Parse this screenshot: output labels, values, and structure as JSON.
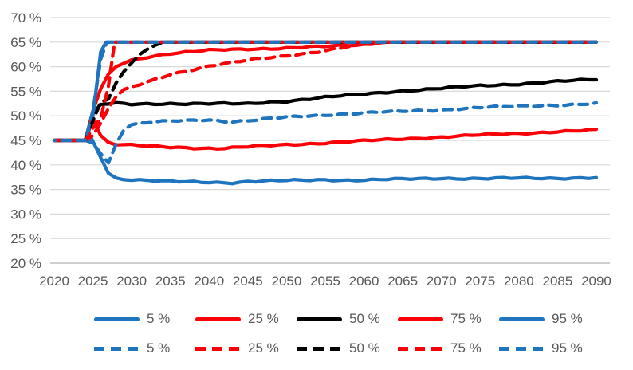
{
  "colors": {
    "blue": "#1F74BE",
    "red": "#FB0006",
    "black": "#000000",
    "grid": "#D9D9D9",
    "axis": "#BFBFBF",
    "label": "#595959",
    "background": "#FFFFFF"
  },
  "chart_data": {
    "type": "line",
    "title": "",
    "xlabel": "",
    "ylabel": "",
    "x_axis": {
      "range": [
        2020,
        2090
      ],
      "tick_labels": [
        "2020",
        "2025",
        "2030",
        "2035",
        "2040",
        "2045",
        "2050",
        "2055",
        "2060",
        "2065",
        "2070",
        "2075",
        "2080",
        "2085",
        "2090"
      ],
      "tick_values": [
        2020,
        2025,
        2030,
        2035,
        2040,
        2045,
        2050,
        2055,
        2060,
        2065,
        2070,
        2075,
        2080,
        2085,
        2090
      ]
    },
    "y_axis": {
      "range": [
        20,
        70
      ],
      "unit": "%",
      "tick_labels": [
        "70 %",
        "65 %",
        "60 %",
        "55 %",
        "50 %",
        "45 %",
        "40 %",
        "35 %",
        "30 %",
        "25 %",
        "20 %"
      ],
      "tick_values": [
        70,
        65,
        60,
        55,
        50,
        45,
        40,
        35,
        30,
        25,
        20
      ]
    },
    "grid": "horizontal-only",
    "legend": {
      "position": "bottom",
      "rows": [
        {
          "style": "solid",
          "items": [
            {
              "label": "5 %",
              "color": "blue"
            },
            {
              "label": "25 %",
              "color": "red"
            },
            {
              "label": "50 %",
              "color": "black"
            },
            {
              "label": "75 %",
              "color": "red"
            },
            {
              "label": "95 %",
              "color": "blue"
            }
          ]
        },
        {
          "style": "dashed",
          "items": [
            {
              "label": "5 %",
              "color": "blue"
            },
            {
              "label": "25 %",
              "color": "red"
            },
            {
              "label": "50 %",
              "color": "black"
            },
            {
              "label": "75 %",
              "color": "red"
            },
            {
              "label": "95 %",
              "color": "blue"
            }
          ]
        }
      ]
    },
    "series": [
      {
        "id": "p5-solid",
        "label": "5 %",
        "style": "solid",
        "color": "blue",
        "points": [
          [
            2020,
            45
          ],
          [
            2024,
            45
          ],
          [
            2024.7,
            45.8
          ],
          [
            2026,
            41.5
          ],
          [
            2027,
            38.3
          ],
          [
            2028,
            37.3
          ],
          [
            2029,
            37.1
          ],
          [
            2030,
            37
          ],
          [
            2032,
            36.8
          ],
          [
            2035,
            36.6
          ],
          [
            2040,
            36.5
          ],
          [
            2043,
            36.4
          ],
          [
            2045,
            36.6
          ],
          [
            2050,
            36.8
          ],
          [
            2055,
            37
          ],
          [
            2058,
            36.9
          ],
          [
            2060,
            36.9
          ],
          [
            2065,
            37.1
          ],
          [
            2070,
            37.3
          ],
          [
            2075,
            37.2
          ],
          [
            2080,
            37.3
          ],
          [
            2085,
            37.3
          ],
          [
            2090,
            37.4
          ]
        ]
      },
      {
        "id": "p25-solid",
        "label": "25 %",
        "style": "solid",
        "color": "red",
        "points": [
          [
            2020,
            45
          ],
          [
            2024,
            45
          ],
          [
            2025,
            49.3
          ],
          [
            2026,
            46
          ],
          [
            2027,
            44.6
          ],
          [
            2028,
            44.2
          ],
          [
            2030,
            44
          ],
          [
            2032,
            43.8
          ],
          [
            2035,
            43.6
          ],
          [
            2040,
            43.4
          ],
          [
            2042,
            43.4
          ],
          [
            2045,
            43.7
          ],
          [
            2050,
            44.1
          ],
          [
            2055,
            44.5
          ],
          [
            2060,
            44.9
          ],
          [
            2065,
            45.3
          ],
          [
            2070,
            45.7
          ],
          [
            2075,
            46.1
          ],
          [
            2080,
            46.4
          ],
          [
            2085,
            46.8
          ],
          [
            2090,
            47.1
          ]
        ]
      },
      {
        "id": "p50-solid",
        "label": "50 %",
        "style": "solid",
        "color": "black",
        "points": [
          [
            2020,
            45
          ],
          [
            2024,
            45
          ],
          [
            2025,
            50.5
          ],
          [
            2026,
            52.3
          ],
          [
            2028,
            52.5
          ],
          [
            2030,
            52.3
          ],
          [
            2035,
            52.5
          ],
          [
            2040,
            52.5
          ],
          [
            2045,
            52.4
          ],
          [
            2048,
            52.8
          ],
          [
            2050,
            53
          ],
          [
            2055,
            53.8
          ],
          [
            2060,
            54.4
          ],
          [
            2065,
            55.1
          ],
          [
            2070,
            55.6
          ],
          [
            2075,
            56.1
          ],
          [
            2080,
            56.5
          ],
          [
            2085,
            57
          ],
          [
            2090,
            57.4
          ]
        ]
      },
      {
        "id": "p75-solid",
        "label": "75 %",
        "style": "solid",
        "color": "red",
        "points": [
          [
            2020,
            45
          ],
          [
            2024,
            45
          ],
          [
            2025,
            51
          ],
          [
            2026,
            55.5
          ],
          [
            2027,
            58.5
          ],
          [
            2028,
            60
          ],
          [
            2029,
            60.8
          ],
          [
            2030,
            61.3
          ],
          [
            2032,
            62
          ],
          [
            2035,
            62.7
          ],
          [
            2040,
            63.3
          ],
          [
            2045,
            63.6
          ],
          [
            2050,
            63.8
          ],
          [
            2055,
            64.1
          ],
          [
            2060,
            64.5
          ],
          [
            2063,
            65
          ],
          [
            2090,
            65
          ]
        ]
      },
      {
        "id": "p95-solid",
        "label": "95 %",
        "style": "solid",
        "color": "blue",
        "points": [
          [
            2020,
            45
          ],
          [
            2024,
            45
          ],
          [
            2025,
            50
          ],
          [
            2026,
            63
          ],
          [
            2026.7,
            65
          ],
          [
            2090,
            65
          ]
        ]
      },
      {
        "id": "p5-dashed",
        "label": "5 %",
        "style": "dashed",
        "color": "blue",
        "points": [
          [
            2020,
            45
          ],
          [
            2024,
            45
          ],
          [
            2025,
            44.5
          ],
          [
            2026,
            42.3
          ],
          [
            2027,
            40.4
          ],
          [
            2028,
            44.3
          ],
          [
            2029,
            47.3
          ],
          [
            2030,
            48.2
          ],
          [
            2032,
            48.6
          ],
          [
            2035,
            48.9
          ],
          [
            2040,
            49.2
          ],
          [
            2043,
            48.8
          ],
          [
            2045,
            49
          ],
          [
            2050,
            49.7
          ],
          [
            2055,
            50.2
          ],
          [
            2060,
            50.6
          ],
          [
            2065,
            50.9
          ],
          [
            2070,
            51.2
          ],
          [
            2075,
            51.7
          ],
          [
            2080,
            51.9
          ],
          [
            2085,
            52.2
          ],
          [
            2090,
            52.5
          ]
        ]
      },
      {
        "id": "p25-dashed",
        "label": "25 %",
        "style": "dashed",
        "color": "red",
        "points": [
          [
            2020,
            45
          ],
          [
            2024,
            45
          ],
          [
            2025,
            46
          ],
          [
            2026,
            48.5
          ],
          [
            2027,
            51.5
          ],
          [
            2028,
            54
          ],
          [
            2029,
            55.2
          ],
          [
            2030,
            55.8
          ],
          [
            2032,
            56.8
          ],
          [
            2035,
            58.4
          ],
          [
            2040,
            60.2
          ],
          [
            2045,
            61.3
          ],
          [
            2050,
            62.2
          ],
          [
            2055,
            63.3
          ],
          [
            2058,
            64.1
          ],
          [
            2060,
            64.6
          ],
          [
            2062,
            65
          ],
          [
            2090,
            65
          ]
        ]
      },
      {
        "id": "p50-dashed",
        "label": "50 %",
        "style": "dashed",
        "color": "black",
        "points": [
          [
            2020,
            45
          ],
          [
            2024,
            45
          ],
          [
            2025,
            49
          ],
          [
            2026,
            52.8
          ],
          [
            2027,
            53.4
          ],
          [
            2028,
            56.5
          ],
          [
            2029,
            59
          ],
          [
            2030,
            60.8
          ],
          [
            2031,
            62.3
          ],
          [
            2032,
            63.5
          ],
          [
            2033,
            64.5
          ],
          [
            2034,
            65
          ],
          [
            2090,
            65
          ]
        ]
      },
      {
        "id": "p75-dashed",
        "label": "75 %",
        "style": "dashed",
        "color": "red",
        "points": [
          [
            2020,
            45
          ],
          [
            2024,
            45
          ],
          [
            2025,
            47.5
          ],
          [
            2026,
            49.5
          ],
          [
            2027,
            56
          ],
          [
            2027.8,
            65
          ],
          [
            2090,
            65
          ]
        ]
      },
      {
        "id": "p95-dashed",
        "label": "95 %",
        "style": "dashed",
        "color": "blue",
        "points": [
          [
            2020,
            45
          ],
          [
            2024,
            45
          ],
          [
            2025,
            51
          ],
          [
            2026,
            61.5
          ],
          [
            2026.8,
            65
          ],
          [
            2090,
            65
          ]
        ]
      }
    ]
  }
}
